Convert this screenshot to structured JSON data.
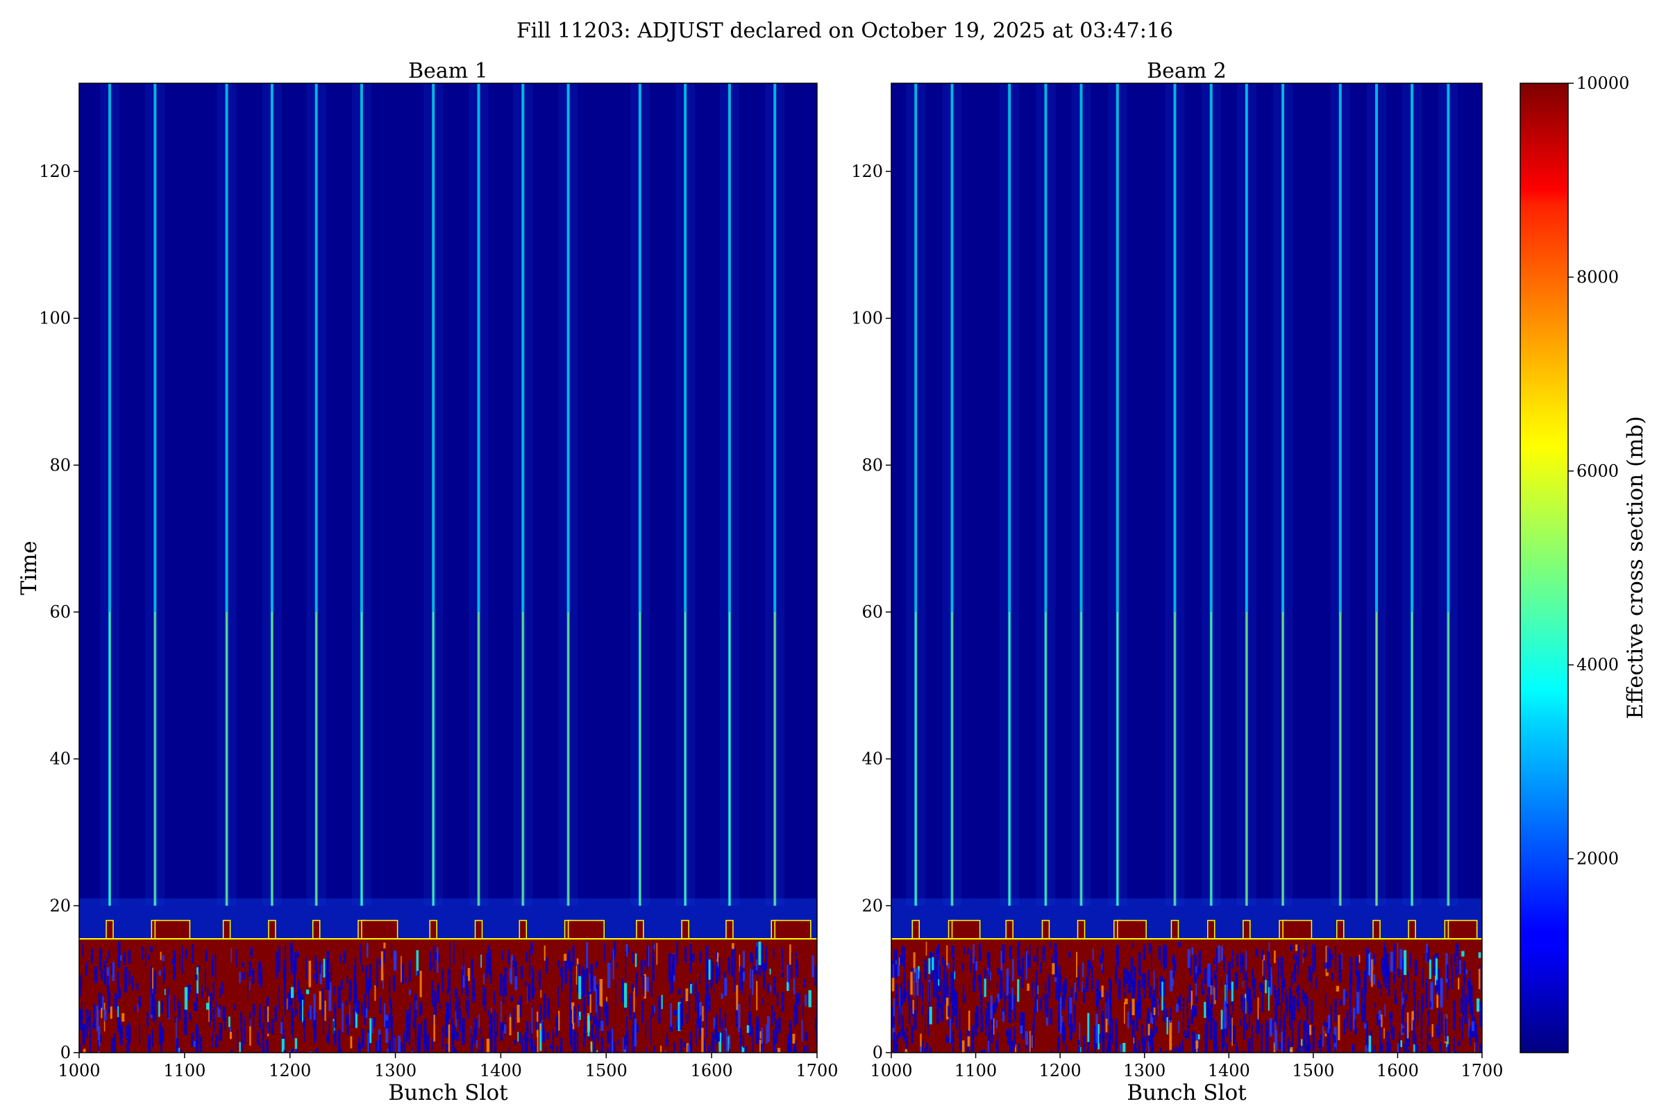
{
  "chart_data": {
    "type": "heatmap",
    "title": "Fill 11203: ADJUST declared on October 19, 2025 at 03:47:16",
    "panels": [
      {
        "subtitle": "Beam 1",
        "xlabel": "Bunch Slot",
        "ylabel": "Time",
        "xlim": [
          1000,
          1700
        ],
        "ylim": [
          0,
          132
        ],
        "xticks": [
          "1000",
          "1100",
          "1200",
          "1300",
          "1400",
          "1500",
          "1600",
          "1700"
        ],
        "yticks": [
          "0",
          "20",
          "40",
          "60",
          "80",
          "100",
          "120"
        ],
        "high_region_top_time": 15.5,
        "streak_slots": [
          1029,
          1072,
          1140,
          1183,
          1225,
          1268,
          1336,
          1379,
          1421,
          1464,
          1532,
          1575,
          1617,
          1660
        ],
        "bump_slots": [
          1029,
          1072,
          1140,
          1183,
          1225,
          1268,
          1336,
          1379,
          1421,
          1464,
          1532,
          1575,
          1617,
          1660
        ],
        "wide_bumps": [
          [
            1072,
            1105
          ],
          [
            1268,
            1302
          ],
          [
            1464,
            1498
          ],
          [
            1660,
            1694
          ]
        ]
      },
      {
        "subtitle": "Beam 2",
        "xlabel": "Bunch Slot",
        "ylabel": "",
        "xlim": [
          1000,
          1700
        ],
        "ylim": [
          0,
          132
        ],
        "xticks": [
          "1000",
          "1100",
          "1200",
          "1300",
          "1400",
          "1500",
          "1600",
          "1700"
        ],
        "yticks": [
          "0",
          "20",
          "40",
          "60",
          "80",
          "100",
          "120"
        ],
        "high_region_top_time": 15.5,
        "streak_slots": [
          1029,
          1072,
          1140,
          1183,
          1225,
          1268,
          1336,
          1379,
          1421,
          1464,
          1532,
          1575,
          1617,
          1660
        ],
        "bump_slots": [
          1029,
          1072,
          1140,
          1183,
          1225,
          1268,
          1336,
          1379,
          1421,
          1464,
          1532,
          1575,
          1617,
          1660
        ],
        "wide_bumps": [
          [
            1072,
            1105
          ],
          [
            1268,
            1302
          ],
          [
            1464,
            1498
          ],
          [
            1660,
            1694
          ]
        ]
      }
    ],
    "colorbar": {
      "label": "Effective cross section (mb)",
      "range": [
        0,
        10000
      ],
      "ticks": [
        "2000",
        "4000",
        "6000",
        "8000",
        "10000"
      ],
      "colormap": "jet"
    }
  }
}
